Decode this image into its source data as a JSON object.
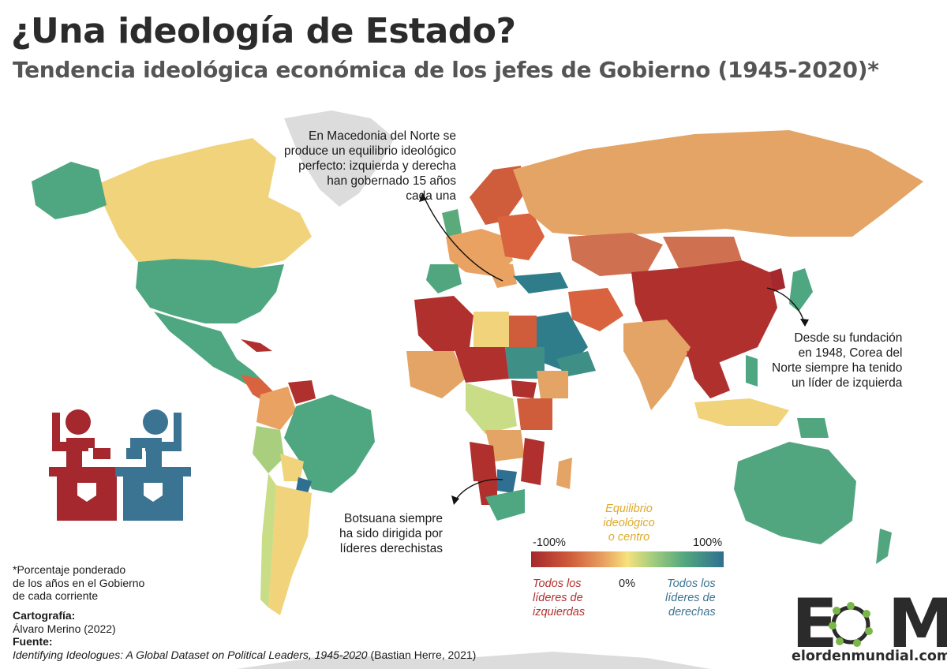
{
  "title": "¿Una ideología de Estado?",
  "subtitle": "Tendencia ideológica económica de los jefes de Gobierno (1945-2020)*",
  "annotations": {
    "macedonia": [
      "En Macedonia del Norte se",
      "produce un equilibrio ideológico",
      "perfecto: izquierda  y derecha",
      "han gobernado 15 años",
      "cada una"
    ],
    "north_korea": [
      "Desde su fundación",
      "en 1948, Corea del",
      "Norte siempre ha tenido",
      "un líder de izquierda"
    ],
    "botswana": [
      "Botsuana siempre",
      "ha sido dirigida por",
      "líderes derechistas"
    ]
  },
  "legend": {
    "center_label": [
      "Equilibrio",
      "ideológico",
      "o centro"
    ],
    "min_label": "-100%",
    "max_label": "100%",
    "zero_label": "0%",
    "left_label": [
      "Todos los",
      "líderes de",
      "izquierdas"
    ],
    "right_label": [
      "Todos los",
      "líderes de",
      "derechas"
    ],
    "colors": {
      "left": "#a4282d",
      "left_mid": "#cf5c3a",
      "orange": "#e9a262",
      "center": "#f6e27c",
      "light_green": "#a9cf7e",
      "green": "#52a67f",
      "right": "#2f6f91"
    }
  },
  "footnote": [
    "*Porcentaje ponderado",
    "de los años en el Gobierno",
    "de cada corriente"
  ],
  "credits": {
    "cartography_label": "Cartografía:",
    "cartography_value": "Álvaro Merino (2022)",
    "source_label": "Fuente:",
    "source_title": "Identifying Ideologues: A Global Dataset on Political Leaders, 1945-2020",
    "source_rest": " (Bastian Herre, 2021)"
  },
  "logo": {
    "letter_e": "E",
    "letter_m": "M",
    "url": "elordenmundial.com"
  },
  "icons": [
    "left-leader-podium-icon",
    "right-leader-podium-icon"
  ]
}
